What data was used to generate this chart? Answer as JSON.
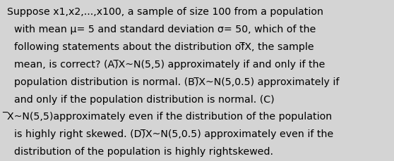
{
  "background_color": "#d4d4d4",
  "text_color": "#000000",
  "font_size": 10.2,
  "lines": [
    "Suppose x1,x2,...,x100, a sample of size 100 from a population",
    "with mean μ= 5 and standard deviation σ= 50, which of the",
    "following statements about the distribution of̅X, the sample",
    "mean, is correct? (A)̅X~N(5,5) approximately if and only if the",
    "population distribution is normal. (B)̅X~N(5,0.5) approximately if",
    "and only if the population distribution is normal. (C)",
    "̅X~N(5,5)approximately even if the distribution of the population",
    "is highly right skewed. (D)̅X~N(5,0.5) approximately even if the",
    "distribution of the population is highly rightskewed."
  ],
  "line_indent": [
    false,
    true,
    true,
    true,
    true,
    true,
    false,
    true,
    true
  ],
  "figwidth": 5.58,
  "figheight": 2.3,
  "dpi": 100
}
